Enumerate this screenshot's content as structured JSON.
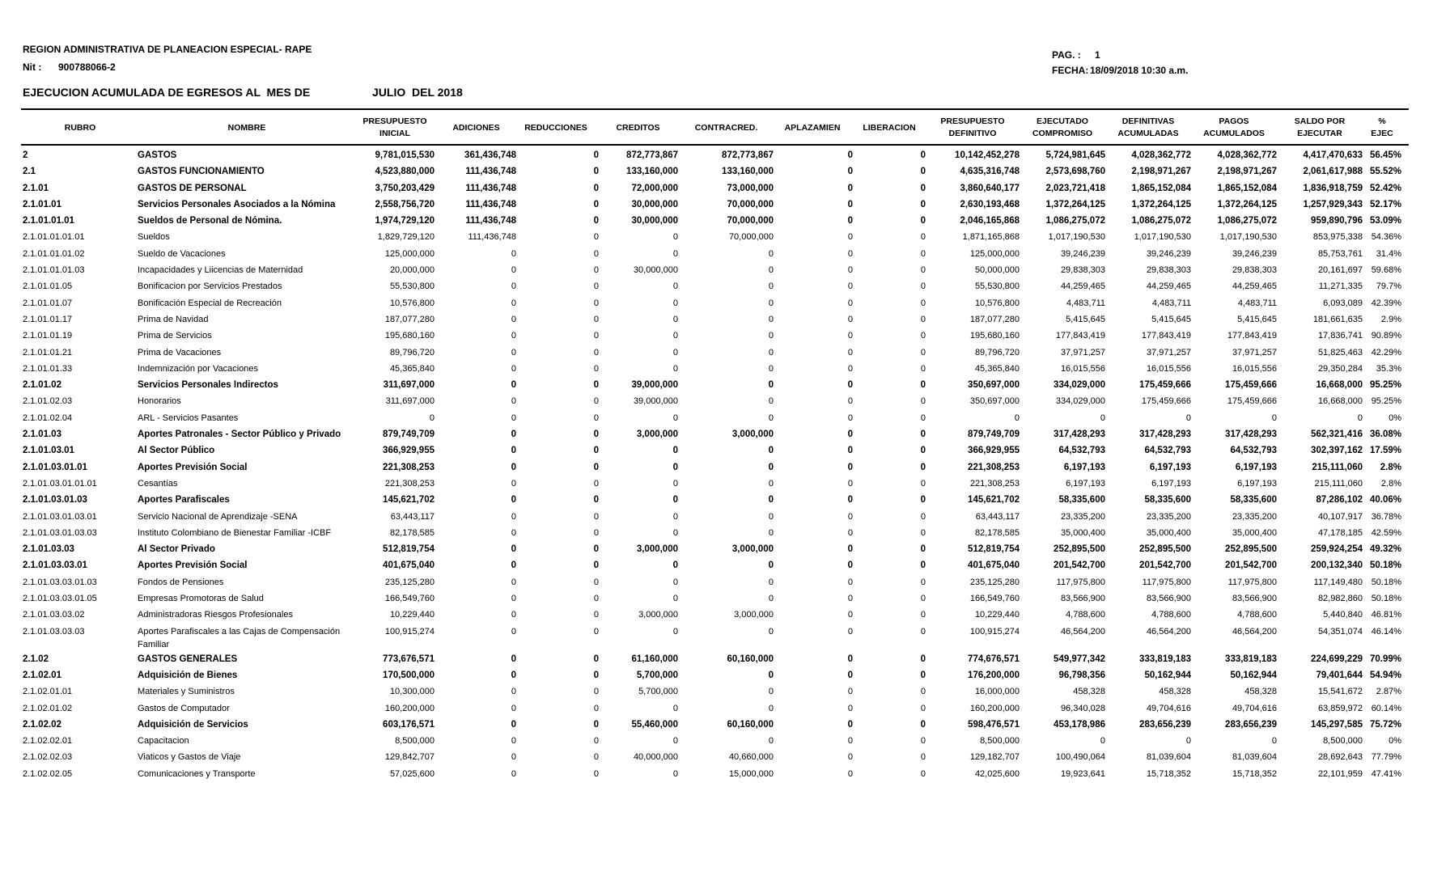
{
  "header": {
    "entity": "REGION ADMINISTRATIVA DE PLANEACION ESPECIAL- RAPE",
    "nit_label": "Nit :",
    "nit_value": "900788066-2",
    "report_title": "EJECUCION ACUMULADA DE EGRESOS AL  MES DE",
    "period": "JULIO  DEL 2018",
    "page_label": "PAG. :",
    "page_value": "1",
    "date_label": "FECHA:",
    "date_value": "18/09/2018 10:30 a.m."
  },
  "columns": [
    [
      "RUBRO",
      ""
    ],
    [
      "NOMBRE",
      ""
    ],
    [
      "PRESUPUESTO",
      "INICIAL"
    ],
    [
      "ADICIONES",
      ""
    ],
    [
      "REDUCCIONES",
      ""
    ],
    [
      "CREDITOS",
      ""
    ],
    [
      "CONTRACRED.",
      ""
    ],
    [
      "APLAZAMIEN",
      ""
    ],
    [
      "LIBERACION",
      ""
    ],
    [
      "PRESUPUESTO",
      "DEFINITIVO"
    ],
    [
      "EJECUTADO",
      "COMPROMISO"
    ],
    [
      "DEFINITIVAS",
      "ACUMULADAS"
    ],
    [
      "PAGOS",
      "ACUMULADOS"
    ],
    [
      "SALDO POR",
      "EJECUTAR"
    ],
    [
      "%",
      "EJEC"
    ]
  ],
  "rows": [
    {
      "b": 1,
      "v": [
        "2",
        "GASTOS",
        "9,781,015,530",
        "361,436,748",
        "0",
        "872,773,867",
        "872,773,867",
        "0",
        "0",
        "10,142,452,278",
        "5,724,981,645",
        "4,028,362,772",
        "4,028,362,772",
        "4,417,470,633",
        "56.45%"
      ]
    },
    {
      "b": 1,
      "v": [
        "2.1",
        "GASTOS FUNCIONAMIENTO",
        "4,523,880,000",
        "111,436,748",
        "0",
        "133,160,000",
        "133,160,000",
        "0",
        "0",
        "4,635,316,748",
        "2,573,698,760",
        "2,198,971,267",
        "2,198,971,267",
        "2,061,617,988",
        "55.52%"
      ]
    },
    {
      "b": 1,
      "v": [
        "2.1.01",
        "GASTOS DE PERSONAL",
        "3,750,203,429",
        "111,436,748",
        "0",
        "72,000,000",
        "73,000,000",
        "0",
        "0",
        "3,860,640,177",
        "2,023,721,418",
        "1,865,152,084",
        "1,865,152,084",
        "1,836,918,759",
        "52.42%"
      ]
    },
    {
      "b": 1,
      "v": [
        "2.1.01.01",
        "Servicios Personales Asociados a la Nómina",
        "2,558,756,720",
        "111,436,748",
        "0",
        "30,000,000",
        "70,000,000",
        "0",
        "0",
        "2,630,193,468",
        "1,372,264,125",
        "1,372,264,125",
        "1,372,264,125",
        "1,257,929,343",
        "52.17%"
      ]
    },
    {
      "b": 1,
      "v": [
        "2.1.01.01.01",
        "Sueldos de Personal de Nómina.",
        "1,974,729,120",
        "111,436,748",
        "0",
        "30,000,000",
        "70,000,000",
        "0",
        "0",
        "2,046,165,868",
        "1,086,275,072",
        "1,086,275,072",
        "1,086,275,072",
        "959,890,796",
        "53.09%"
      ]
    },
    {
      "b": 0,
      "v": [
        "2.1.01.01.01.01",
        "Sueldos",
        "1,829,729,120",
        "111,436,748",
        "0",
        "0",
        "70,000,000",
        "0",
        "0",
        "1,871,165,868",
        "1,017,190,530",
        "1,017,190,530",
        "1,017,190,530",
        "853,975,338",
        "54.36%"
      ]
    },
    {
      "b": 0,
      "v": [
        "2.1.01.01.01.02",
        "Sueldo de Vacaciones",
        "125,000,000",
        "0",
        "0",
        "0",
        "0",
        "0",
        "0",
        "125,000,000",
        "39,246,239",
        "39,246,239",
        "39,246,239",
        "85,753,761",
        "31.4%"
      ]
    },
    {
      "b": 0,
      "v": [
        "2.1.01.01.01.03",
        "Incapacidades y Liicencias de Maternidad",
        "20,000,000",
        "0",
        "0",
        "30,000,000",
        "0",
        "0",
        "0",
        "50,000,000",
        "29,838,303",
        "29,838,303",
        "29,838,303",
        "20,161,697",
        "59.68%"
      ]
    },
    {
      "b": 0,
      "v": [
        "2.1.01.01.05",
        "Bonificacion por Servicios Prestados",
        "55,530,800",
        "0",
        "0",
        "0",
        "0",
        "0",
        "0",
        "55,530,800",
        "44,259,465",
        "44,259,465",
        "44,259,465",
        "11,271,335",
        "79.7%"
      ]
    },
    {
      "b": 0,
      "v": [
        "2.1.01.01.07",
        "Bonificación Especial de Recreación",
        "10,576,800",
        "0",
        "0",
        "0",
        "0",
        "0",
        "0",
        "10,576,800",
        "4,483,711",
        "4,483,711",
        "4,483,711",
        "6,093,089",
        "42.39%"
      ]
    },
    {
      "b": 0,
      "v": [
        "2.1.01.01.17",
        "Prima de Navidad",
        "187,077,280",
        "0",
        "0",
        "0",
        "0",
        "0",
        "0",
        "187,077,280",
        "5,415,645",
        "5,415,645",
        "5,415,645",
        "181,661,635",
        "2.9%"
      ]
    },
    {
      "b": 0,
      "v": [
        "2.1.01.01.19",
        "Prima de Servicios",
        "195,680,160",
        "0",
        "0",
        "0",
        "0",
        "0",
        "0",
        "195,680,160",
        "177,843,419",
        "177,843,419",
        "177,843,419",
        "17,836,741",
        "90.89%"
      ]
    },
    {
      "b": 0,
      "v": [
        "2.1.01.01.21",
        "Prima de Vacaciones",
        "89,796,720",
        "0",
        "0",
        "0",
        "0",
        "0",
        "0",
        "89,796,720",
        "37,971,257",
        "37,971,257",
        "37,971,257",
        "51,825,463",
        "42.29%"
      ]
    },
    {
      "b": 0,
      "v": [
        "2.1.01.01.33",
        "Indemnización por Vacaciones",
        "45,365,840",
        "0",
        "0",
        "0",
        "0",
        "0",
        "0",
        "45,365,840",
        "16,015,556",
        "16,015,556",
        "16,015,556",
        "29,350,284",
        "35.3%"
      ]
    },
    {
      "b": 1,
      "v": [
        "2.1.01.02",
        "Servicios Personales Indirectos",
        "311,697,000",
        "0",
        "0",
        "39,000,000",
        "0",
        "0",
        "0",
        "350,697,000",
        "334,029,000",
        "175,459,666",
        "175,459,666",
        "16,668,000",
        "95.25%"
      ]
    },
    {
      "b": 0,
      "v": [
        "2.1.01.02.03",
        "Honorarios",
        "311,697,000",
        "0",
        "0",
        "39,000,000",
        "0",
        "0",
        "0",
        "350,697,000",
        "334,029,000",
        "175,459,666",
        "175,459,666",
        "16,668,000",
        "95.25%"
      ]
    },
    {
      "b": 0,
      "v": [
        "2.1.01.02.04",
        "ARL - Servicios Pasantes",
        "0",
        "0",
        "0",
        "0",
        "0",
        "0",
        "0",
        "0",
        "0",
        "0",
        "0",
        "0",
        "0%"
      ]
    },
    {
      "b": 1,
      "v": [
        "2.1.01.03",
        "Aportes Patronales - Sector Público y Privado",
        "879,749,709",
        "0",
        "0",
        "3,000,000",
        "3,000,000",
        "0",
        "0",
        "879,749,709",
        "317,428,293",
        "317,428,293",
        "317,428,293",
        "562,321,416",
        "36.08%"
      ]
    },
    {
      "b": 1,
      "v": [
        "2.1.01.03.01",
        "Al Sector Público",
        "366,929,955",
        "0",
        "0",
        "0",
        "0",
        "0",
        "0",
        "366,929,955",
        "64,532,793",
        "64,532,793",
        "64,532,793",
        "302,397,162",
        "17.59%"
      ]
    },
    {
      "b": 1,
      "v": [
        "2.1.01.03.01.01",
        "Aportes Previsión Social",
        "221,308,253",
        "0",
        "0",
        "0",
        "0",
        "0",
        "0",
        "221,308,253",
        "6,197,193",
        "6,197,193",
        "6,197,193",
        "215,111,060",
        "2.8%"
      ]
    },
    {
      "b": 0,
      "v": [
        "2.1.01.03.01.01.01",
        "Cesantías",
        "221,308,253",
        "0",
        "0",
        "0",
        "0",
        "0",
        "0",
        "221,308,253",
        "6,197,193",
        "6,197,193",
        "6,197,193",
        "215,111,060",
        "2.8%"
      ]
    },
    {
      "b": 1,
      "v": [
        "2.1.01.03.01.03",
        "Aportes Parafiscales",
        "145,621,702",
        "0",
        "0",
        "0",
        "0",
        "0",
        "0",
        "145,621,702",
        "58,335,600",
        "58,335,600",
        "58,335,600",
        "87,286,102",
        "40.06%"
      ]
    },
    {
      "b": 0,
      "v": [
        "2.1.01.03.01.03.01",
        "Servicio Nacional de Aprendizaje -SENA",
        "63,443,117",
        "0",
        "0",
        "0",
        "0",
        "0",
        "0",
        "63,443,117",
        "23,335,200",
        "23,335,200",
        "23,335,200",
        "40,107,917",
        "36.78%"
      ]
    },
    {
      "b": 0,
      "v": [
        "2.1.01.03.01.03.03",
        "Instituto Colombiano de Bienestar Familiar -ICBF",
        "82,178,585",
        "0",
        "0",
        "0",
        "0",
        "0",
        "0",
        "82,178,585",
        "35,000,400",
        "35,000,400",
        "35,000,400",
        "47,178,185",
        "42.59%"
      ]
    },
    {
      "b": 1,
      "v": [
        "2.1.01.03.03",
        "Al Sector Privado",
        "512,819,754",
        "0",
        "0",
        "3,000,000",
        "3,000,000",
        "0",
        "0",
        "512,819,754",
        "252,895,500",
        "252,895,500",
        "252,895,500",
        "259,924,254",
        "49.32%"
      ]
    },
    {
      "b": 1,
      "v": [
        "2.1.01.03.03.01",
        "Aportes Previsión Social",
        "401,675,040",
        "0",
        "0",
        "0",
        "0",
        "0",
        "0",
        "401,675,040",
        "201,542,700",
        "201,542,700",
        "201,542,700",
        "200,132,340",
        "50.18%"
      ]
    },
    {
      "b": 0,
      "v": [
        "2.1.01.03.03.01.03",
        "Fondos de Pensiones",
        "235,125,280",
        "0",
        "0",
        "0",
        "0",
        "0",
        "0",
        "235,125,280",
        "117,975,800",
        "117,975,800",
        "117,975,800",
        "117,149,480",
        "50.18%"
      ]
    },
    {
      "b": 0,
      "v": [
        "2.1.01.03.03.01.05",
        "Empresas Promotoras de Salud",
        "166,549,760",
        "0",
        "0",
        "0",
        "0",
        "0",
        "0",
        "166,549,760",
        "83,566,900",
        "83,566,900",
        "83,566,900",
        "82,982,860",
        "50.18%"
      ]
    },
    {
      "b": 0,
      "v": [
        "2.1.01.03.03.02",
        "Administradoras Riesgos Profesionales",
        "10,229,440",
        "0",
        "0",
        "3,000,000",
        "3,000,000",
        "0",
        "0",
        "10,229,440",
        "4,788,600",
        "4,788,600",
        "4,788,600",
        "5,440,840",
        "46.81%"
      ]
    },
    {
      "b": 0,
      "v": [
        "2.1.01.03.03.03",
        "Aportes Parafiscales a las Cajas de Compensación Familiar",
        "100,915,274",
        "0",
        "0",
        "0",
        "0",
        "0",
        "0",
        "100,915,274",
        "46,564,200",
        "46,564,200",
        "46,564,200",
        "54,351,074",
        "46.14%"
      ]
    },
    {
      "b": 1,
      "v": [
        "2.1.02",
        "GASTOS GENERALES",
        "773,676,571",
        "0",
        "0",
        "61,160,000",
        "60,160,000",
        "0",
        "0",
        "774,676,571",
        "549,977,342",
        "333,819,183",
        "333,819,183",
        "224,699,229",
        "70.99%"
      ]
    },
    {
      "b": 1,
      "v": [
        "2.1.02.01",
        "Adquisición de Bienes",
        "170,500,000",
        "0",
        "0",
        "5,700,000",
        "0",
        "0",
        "0",
        "176,200,000",
        "96,798,356",
        "50,162,944",
        "50,162,944",
        "79,401,644",
        "54.94%"
      ]
    },
    {
      "b": 0,
      "v": [
        "2.1.02.01.01",
        "Materiales y Suministros",
        "10,300,000",
        "0",
        "0",
        "5,700,000",
        "0",
        "0",
        "0",
        "16,000,000",
        "458,328",
        "458,328",
        "458,328",
        "15,541,672",
        "2.87%"
      ]
    },
    {
      "b": 0,
      "v": [
        "2.1.02.01.02",
        "Gastos de Computador",
        "160,200,000",
        "0",
        "0",
        "0",
        "0",
        "0",
        "0",
        "160,200,000",
        "96,340,028",
        "49,704,616",
        "49,704,616",
        "63,859,972",
        "60.14%"
      ]
    },
    {
      "b": 1,
      "v": [
        "2.1.02.02",
        "Adquisición de Servicios",
        "603,176,571",
        "0",
        "0",
        "55,460,000",
        "60,160,000",
        "0",
        "0",
        "598,476,571",
        "453,178,986",
        "283,656,239",
        "283,656,239",
        "145,297,585",
        "75.72%"
      ]
    },
    {
      "b": 0,
      "v": [
        "2.1.02.02.01",
        "Capacitacion",
        "8,500,000",
        "0",
        "0",
        "0",
        "0",
        "0",
        "0",
        "8,500,000",
        "0",
        "0",
        "0",
        "8,500,000",
        "0%"
      ]
    },
    {
      "b": 0,
      "v": [
        "2.1.02.02.03",
        "Viaticos y Gastos de Viaje",
        "129,842,707",
        "0",
        "0",
        "40,000,000",
        "40,660,000",
        "0",
        "0",
        "129,182,707",
        "100,490,064",
        "81,039,604",
        "81,039,604",
        "28,692,643",
        "77.79%"
      ]
    },
    {
      "b": 0,
      "v": [
        "2.1.02.02.05",
        "Comunicaciones y Transporte",
        "57,025,600",
        "0",
        "0",
        "0",
        "15,000,000",
        "0",
        "0",
        "42,025,600",
        "19,923,641",
        "15,718,352",
        "15,718,352",
        "22,101,959",
        "47.41%"
      ]
    }
  ]
}
